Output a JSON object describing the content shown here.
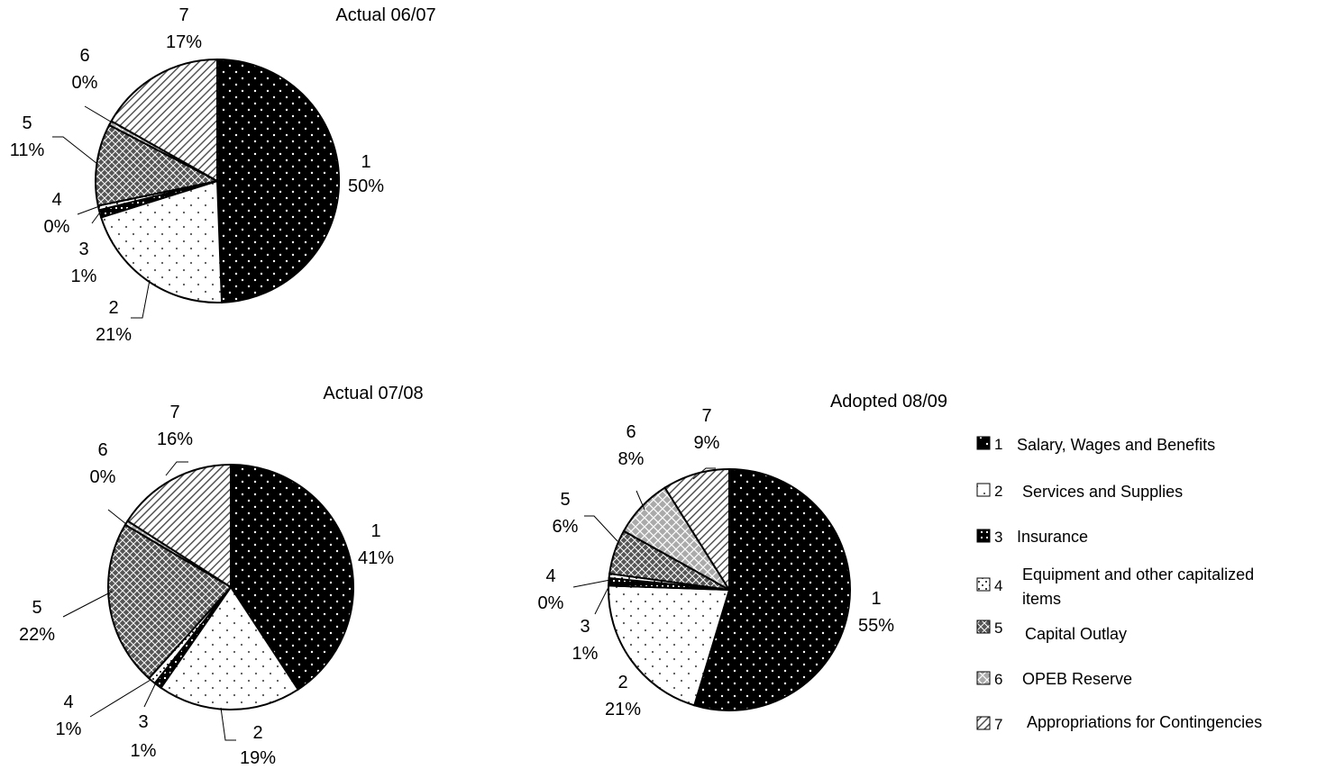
{
  "colors": {
    "background": "#ffffff",
    "ink": "#000000"
  },
  "chart_data": [
    {
      "type": "pie",
      "title": "Actual 06/07",
      "categories": [
        "1",
        "2",
        "3",
        "4",
        "5",
        "6",
        "7"
      ],
      "values": [
        50,
        21,
        1,
        0,
        11,
        0,
        17
      ],
      "value_labels": [
        "50%",
        "21%",
        "1%",
        "0%",
        "11%",
        "0%",
        "17%"
      ]
    },
    {
      "type": "pie",
      "title": "Actual 07/08",
      "categories": [
        "1",
        "2",
        "3",
        "4",
        "5",
        "6",
        "7"
      ],
      "values": [
        41,
        19,
        1,
        1,
        22,
        0,
        16
      ],
      "value_labels": [
        "41%",
        "19%",
        "1%",
        "1%",
        "22%",
        "0%",
        "16%"
      ]
    },
    {
      "type": "pie",
      "title": "Adopted 08/09",
      "categories": [
        "1",
        "2",
        "3",
        "4",
        "5",
        "6",
        "7"
      ],
      "values": [
        55,
        21,
        1,
        0,
        6,
        8,
        9
      ],
      "value_labels": [
        "55%",
        "21%",
        "1%",
        "0%",
        "6%",
        "8%",
        "9%"
      ]
    }
  ],
  "legend": {
    "placement": "right",
    "items": [
      {
        "number": "1",
        "label": "Salary, Wages and Benefits"
      },
      {
        "number": "2",
        "label": "Services and Supplies"
      },
      {
        "number": "3",
        "label": "Insurance"
      },
      {
        "number": "4",
        "label": "Equipment and other capitalized items"
      },
      {
        "number": "5",
        "label": "Capital Outlay"
      },
      {
        "number": "6",
        "label": "OPEB Reserve"
      },
      {
        "number": "7",
        "label": "Appropriations for Contingencies"
      }
    ]
  }
}
